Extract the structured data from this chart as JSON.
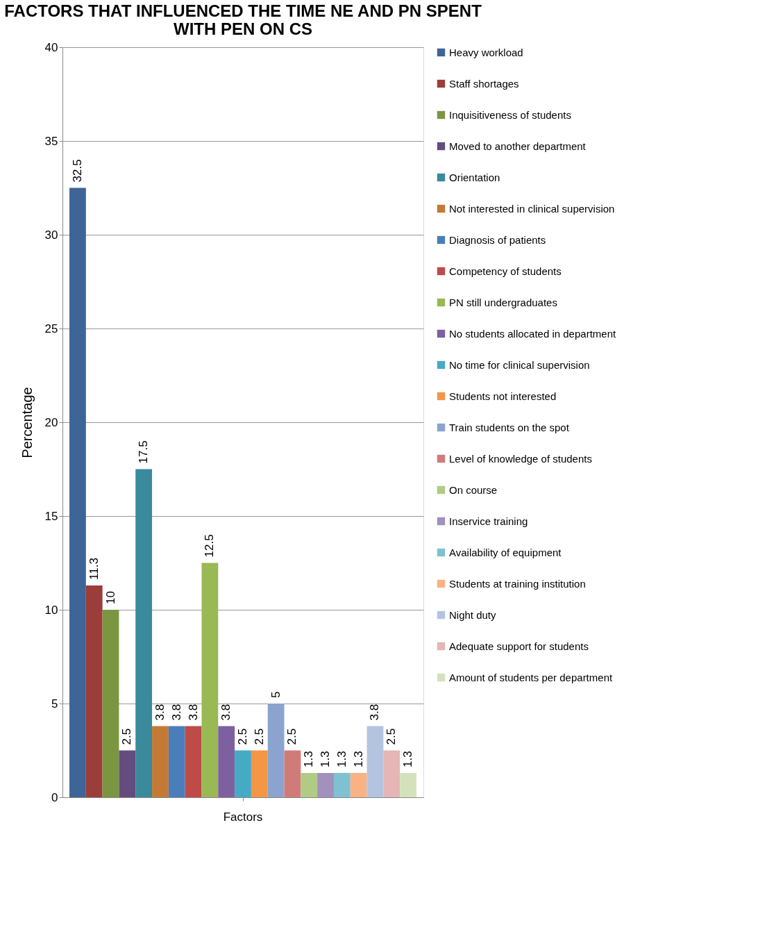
{
  "chart_data": {
    "type": "bar",
    "title": "FACTORS THAT INFLUENCED THE TIME NE AND PN SPENT WITH PEN ON CS",
    "ylabel": "Percentage",
    "categories": [
      "Factors"
    ],
    "series": [
      {
        "name": "Heavy workload",
        "color": "#3f6497",
        "values": [
          32.5
        ]
      },
      {
        "name": "Staff shortages",
        "color": "#9b3d3a",
        "values": [
          11.3
        ]
      },
      {
        "name": "Inquisitiveness of students",
        "color": "#7b9640",
        "values": [
          10
        ]
      },
      {
        "name": "Moved to another department",
        "color": "#644c7f",
        "values": [
          2.5
        ]
      },
      {
        "name": "Orientation",
        "color": "#3a8a9c",
        "values": [
          17.5
        ]
      },
      {
        "name": "Not interested in clinical supervision",
        "color": "#c47a35",
        "values": [
          3.8
        ]
      },
      {
        "name": "Diagnosis of patients",
        "color": "#4a7ebb",
        "values": [
          3.8
        ]
      },
      {
        "name": "Competency of students",
        "color": "#be4b48",
        "values": [
          3.8
        ]
      },
      {
        "name": "PN still undergraduates",
        "color": "#98b954",
        "values": [
          12.5
        ]
      },
      {
        "name": "No students allocated in department",
        "color": "#7d60a0",
        "values": [
          3.8
        ]
      },
      {
        "name": "No time for clinical supervision",
        "color": "#46aac5",
        "values": [
          2.5
        ]
      },
      {
        "name": "Students not interested",
        "color": "#f59646",
        "values": [
          2.5
        ]
      },
      {
        "name": "Train students on the spot",
        "color": "#8ba4cf",
        "values": [
          5
        ]
      },
      {
        "name": "Level of knowledge of students",
        "color": "#d17b78",
        "values": [
          2.5
        ]
      },
      {
        "name": "On course",
        "color": "#b0cb84",
        "values": [
          1.3
        ]
      },
      {
        "name": "Inservice training",
        "color": "#a290bd",
        "values": [
          1.3
        ]
      },
      {
        "name": "Availability of equipment",
        "color": "#7fc1d2",
        "values": [
          1.3
        ]
      },
      {
        "name": "Students at training institution",
        "color": "#f8b283",
        "values": [
          1.3
        ]
      },
      {
        "name": "Night duty",
        "color": "#b4c4e0",
        "values": [
          3.8
        ]
      },
      {
        "name": "Adequate support for students",
        "color": "#e4b6b5",
        "values": [
          2.5
        ]
      },
      {
        "name": "Amount of students per department",
        "color": "#d4e2bc",
        "values": [
          1.3
        ]
      }
    ],
    "ylim": [
      0,
      40
    ],
    "yticks": [
      0,
      5,
      10,
      15,
      20,
      25,
      30,
      35,
      40
    ],
    "grid": "y",
    "legend": "right",
    "data_labels": true
  }
}
